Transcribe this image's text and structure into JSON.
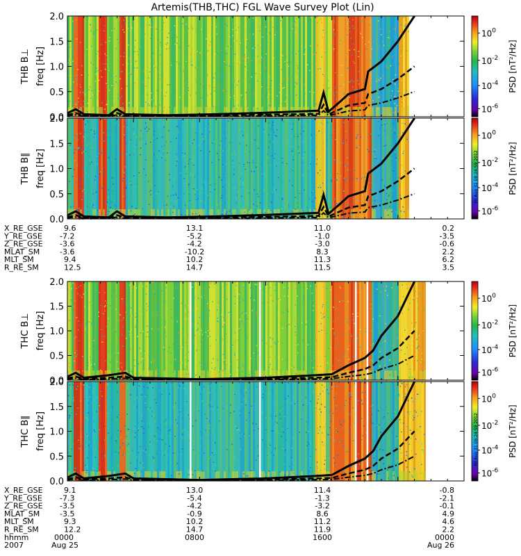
{
  "title": "Artemis(THB,THC) FGL Wave Survey Plot (Lin)",
  "chart_data": {
    "type": "heatmap",
    "title": "Artemis(THB,THC) FGL Wave Survey Plot (Lin)",
    "x_range_hours": [
      0,
      24
    ],
    "panels": [
      {
        "id": "thb_perp",
        "ylabel": "THB B⊥",
        "ylabel2": "freq [Hz]",
        "ylim": [
          0,
          2.0
        ],
        "yticks": [
          "0.0",
          "0.5",
          "1.0",
          "1.5",
          "2.0"
        ],
        "data_end_hour": 20.6,
        "gyro": [
          [
            0,
            0.07
          ],
          [
            0.5,
            0.15
          ],
          [
            1.0,
            0.05
          ],
          [
            2.5,
            0.03
          ],
          [
            3.0,
            0.15
          ],
          [
            3.5,
            0.05
          ],
          [
            6,
            0.03
          ],
          [
            9,
            0.05
          ],
          [
            12,
            0.08
          ],
          [
            15.2,
            0.12
          ],
          [
            15.5,
            0.48
          ],
          [
            15.8,
            0.1
          ],
          [
            16.5,
            0.3
          ],
          [
            17,
            0.45
          ],
          [
            18,
            0.55
          ],
          [
            18.2,
            0.9
          ],
          [
            19,
            1.1
          ],
          [
            20,
            1.5
          ],
          [
            21,
            2.0
          ]
        ]
      },
      {
        "id": "thb_par",
        "ylabel": "THB B∥",
        "ylabel2": "freq [Hz]",
        "ylim": [
          0,
          2.0
        ],
        "yticks": [
          "0.0",
          "0.5",
          "1.0",
          "1.5",
          "2.0"
        ],
        "data_end_hour": 20.6,
        "gyro": [
          [
            0,
            0.07
          ],
          [
            0.5,
            0.15
          ],
          [
            1.0,
            0.05
          ],
          [
            2.5,
            0.03
          ],
          [
            3.0,
            0.15
          ],
          [
            3.5,
            0.05
          ],
          [
            6,
            0.03
          ],
          [
            9,
            0.05
          ],
          [
            12,
            0.08
          ],
          [
            15.2,
            0.12
          ],
          [
            15.5,
            0.48
          ],
          [
            15.8,
            0.1
          ],
          [
            16.5,
            0.3
          ],
          [
            17,
            0.45
          ],
          [
            18,
            0.55
          ],
          [
            18.2,
            0.9
          ],
          [
            19,
            1.1
          ],
          [
            20,
            1.5
          ],
          [
            21,
            2.0
          ]
        ]
      },
      {
        "id": "thc_perp",
        "ylabel": "THC B⊥",
        "ylabel2": "freq [Hz]",
        "ylim": [
          0,
          2.0
        ],
        "yticks": [
          "0.0",
          "0.5",
          "1.0",
          "1.5",
          "2.0"
        ],
        "data_end_hour": 21.6,
        "gyro": [
          [
            0,
            0.07
          ],
          [
            0.5,
            0.15
          ],
          [
            1.0,
            0.05
          ],
          [
            2.5,
            0.1
          ],
          [
            3.5,
            0.15
          ],
          [
            4,
            0.05
          ],
          [
            8,
            0.02
          ],
          [
            12,
            0.05
          ],
          [
            15,
            0.1
          ],
          [
            16,
            0.12
          ],
          [
            17,
            0.3
          ],
          [
            18,
            0.45
          ],
          [
            18.5,
            0.6
          ],
          [
            19,
            0.9
          ],
          [
            20,
            1.3
          ],
          [
            21,
            2.0
          ]
        ]
      },
      {
        "id": "thc_par",
        "ylabel": "THC B∥",
        "ylabel2": "freq [Hz]",
        "ylim": [
          0,
          2.0
        ],
        "yticks": [
          "0.0",
          "0.5",
          "1.0",
          "1.5",
          "2.0"
        ],
        "data_end_hour": 21.6,
        "gyro": [
          [
            0,
            0.07
          ],
          [
            0.5,
            0.15
          ],
          [
            1.0,
            0.05
          ],
          [
            2.5,
            0.1
          ],
          [
            3.5,
            0.15
          ],
          [
            4,
            0.05
          ],
          [
            8,
            0.02
          ],
          [
            12,
            0.05
          ],
          [
            15,
            0.1
          ],
          [
            16,
            0.12
          ],
          [
            17,
            0.3
          ],
          [
            18,
            0.45
          ],
          [
            18.5,
            0.6
          ],
          [
            19,
            0.9
          ],
          [
            20,
            1.3
          ],
          [
            21,
            2.0
          ]
        ]
      }
    ],
    "colorbar": {
      "label": "PSD [nT²/Hz]",
      "ticks": [
        {
          "base": "10",
          "exp": "0"
        },
        {
          "base": "10",
          "exp": "-2"
        },
        {
          "base": "10",
          "exp": "-4"
        },
        {
          "base": "10",
          "exp": "-6"
        }
      ],
      "stamp": "Fri Aug 31 08:24:59 2012"
    }
  },
  "ephemeris_thb": {
    "labels": [
      "X_RE_GSE",
      "Y_RE_GSE",
      "Z_RE_GSE",
      "MLAT_SM",
      "MLT_SM",
      "R_RE_SM"
    ],
    "col1": [
      "9.6",
      "-7.2",
      "-3.6",
      "-3.6",
      "9.4",
      "12.5"
    ],
    "col2": [
      "13.1",
      "-5.2",
      "-4.2",
      "-10.2",
      "10.2",
      "14.7"
    ],
    "col3": [
      "11.0",
      "-1.0",
      "-3.0",
      "8.3",
      "11.3",
      "11.5"
    ],
    "col4": [
      "0.2",
      "-3.5",
      "-0.6",
      "2.2",
      "6.2",
      "3.5"
    ]
  },
  "ephemeris_thc": {
    "labels": [
      "X_RE_GSE",
      "Y_RE_GSE",
      "Z_RE_GSE",
      "MLAT_SM",
      "MLT_SM",
      "R_RE_SM",
      "hhmm",
      "2007"
    ],
    "col1": [
      "9.1",
      "-7.3",
      "-3.5",
      "-3.5",
      "9.3",
      "12.2",
      "0000",
      "Aug 25"
    ],
    "col2": [
      "13.0",
      "-5.4",
      "-4.2",
      "-0.9",
      "10.2",
      "14.7",
      "0800",
      ""
    ],
    "col3": [
      "11.4",
      "-1.3",
      "-3.2",
      "8.6",
      "11.2",
      "11.9",
      "1600",
      ""
    ],
    "col4": [
      "-0.8",
      "-2.1",
      "-0.1",
      "4.9",
      "4.6",
      "2.2",
      "0000",
      "Aug 26"
    ]
  }
}
